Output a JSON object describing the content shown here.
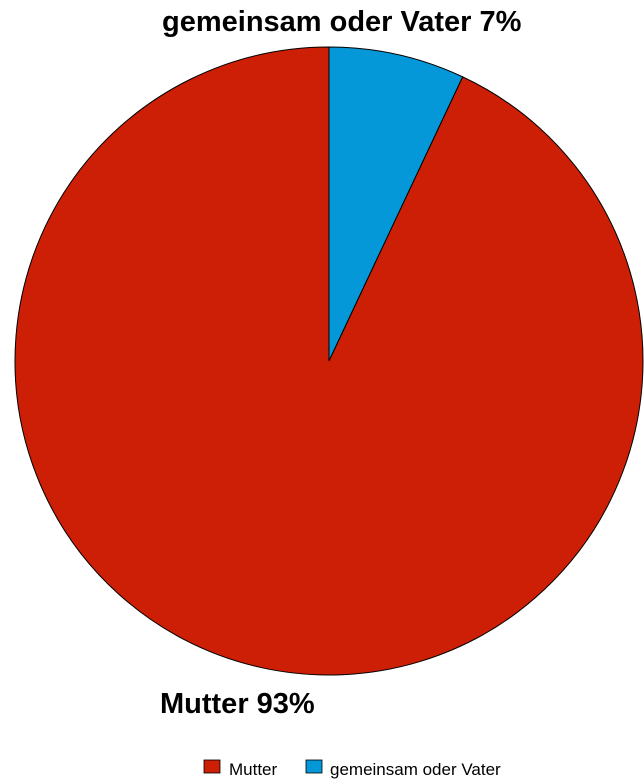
{
  "chart_data": {
    "type": "pie",
    "title": "",
    "slices": [
      {
        "label": "Mutter",
        "value": 93,
        "value_label": "93%",
        "color": "#cc1f06"
      },
      {
        "label": "gemeinsam oder Vater",
        "value": 7,
        "value_label": "7%",
        "color": "#0498d8"
      }
    ],
    "data_labels": [
      {
        "text": "Mutter 93%",
        "slice": "Mutter"
      },
      {
        "text": "gemeinsam oder Vater 7%",
        "slice": "gemeinsam oder Vater"
      }
    ],
    "legend": {
      "position": "bottom",
      "entries": [
        "Mutter",
        "gemeinsam oder Vater"
      ]
    },
    "start_angle": "12 o'clock",
    "direction": "clockwise",
    "outline_color": "#000000"
  }
}
